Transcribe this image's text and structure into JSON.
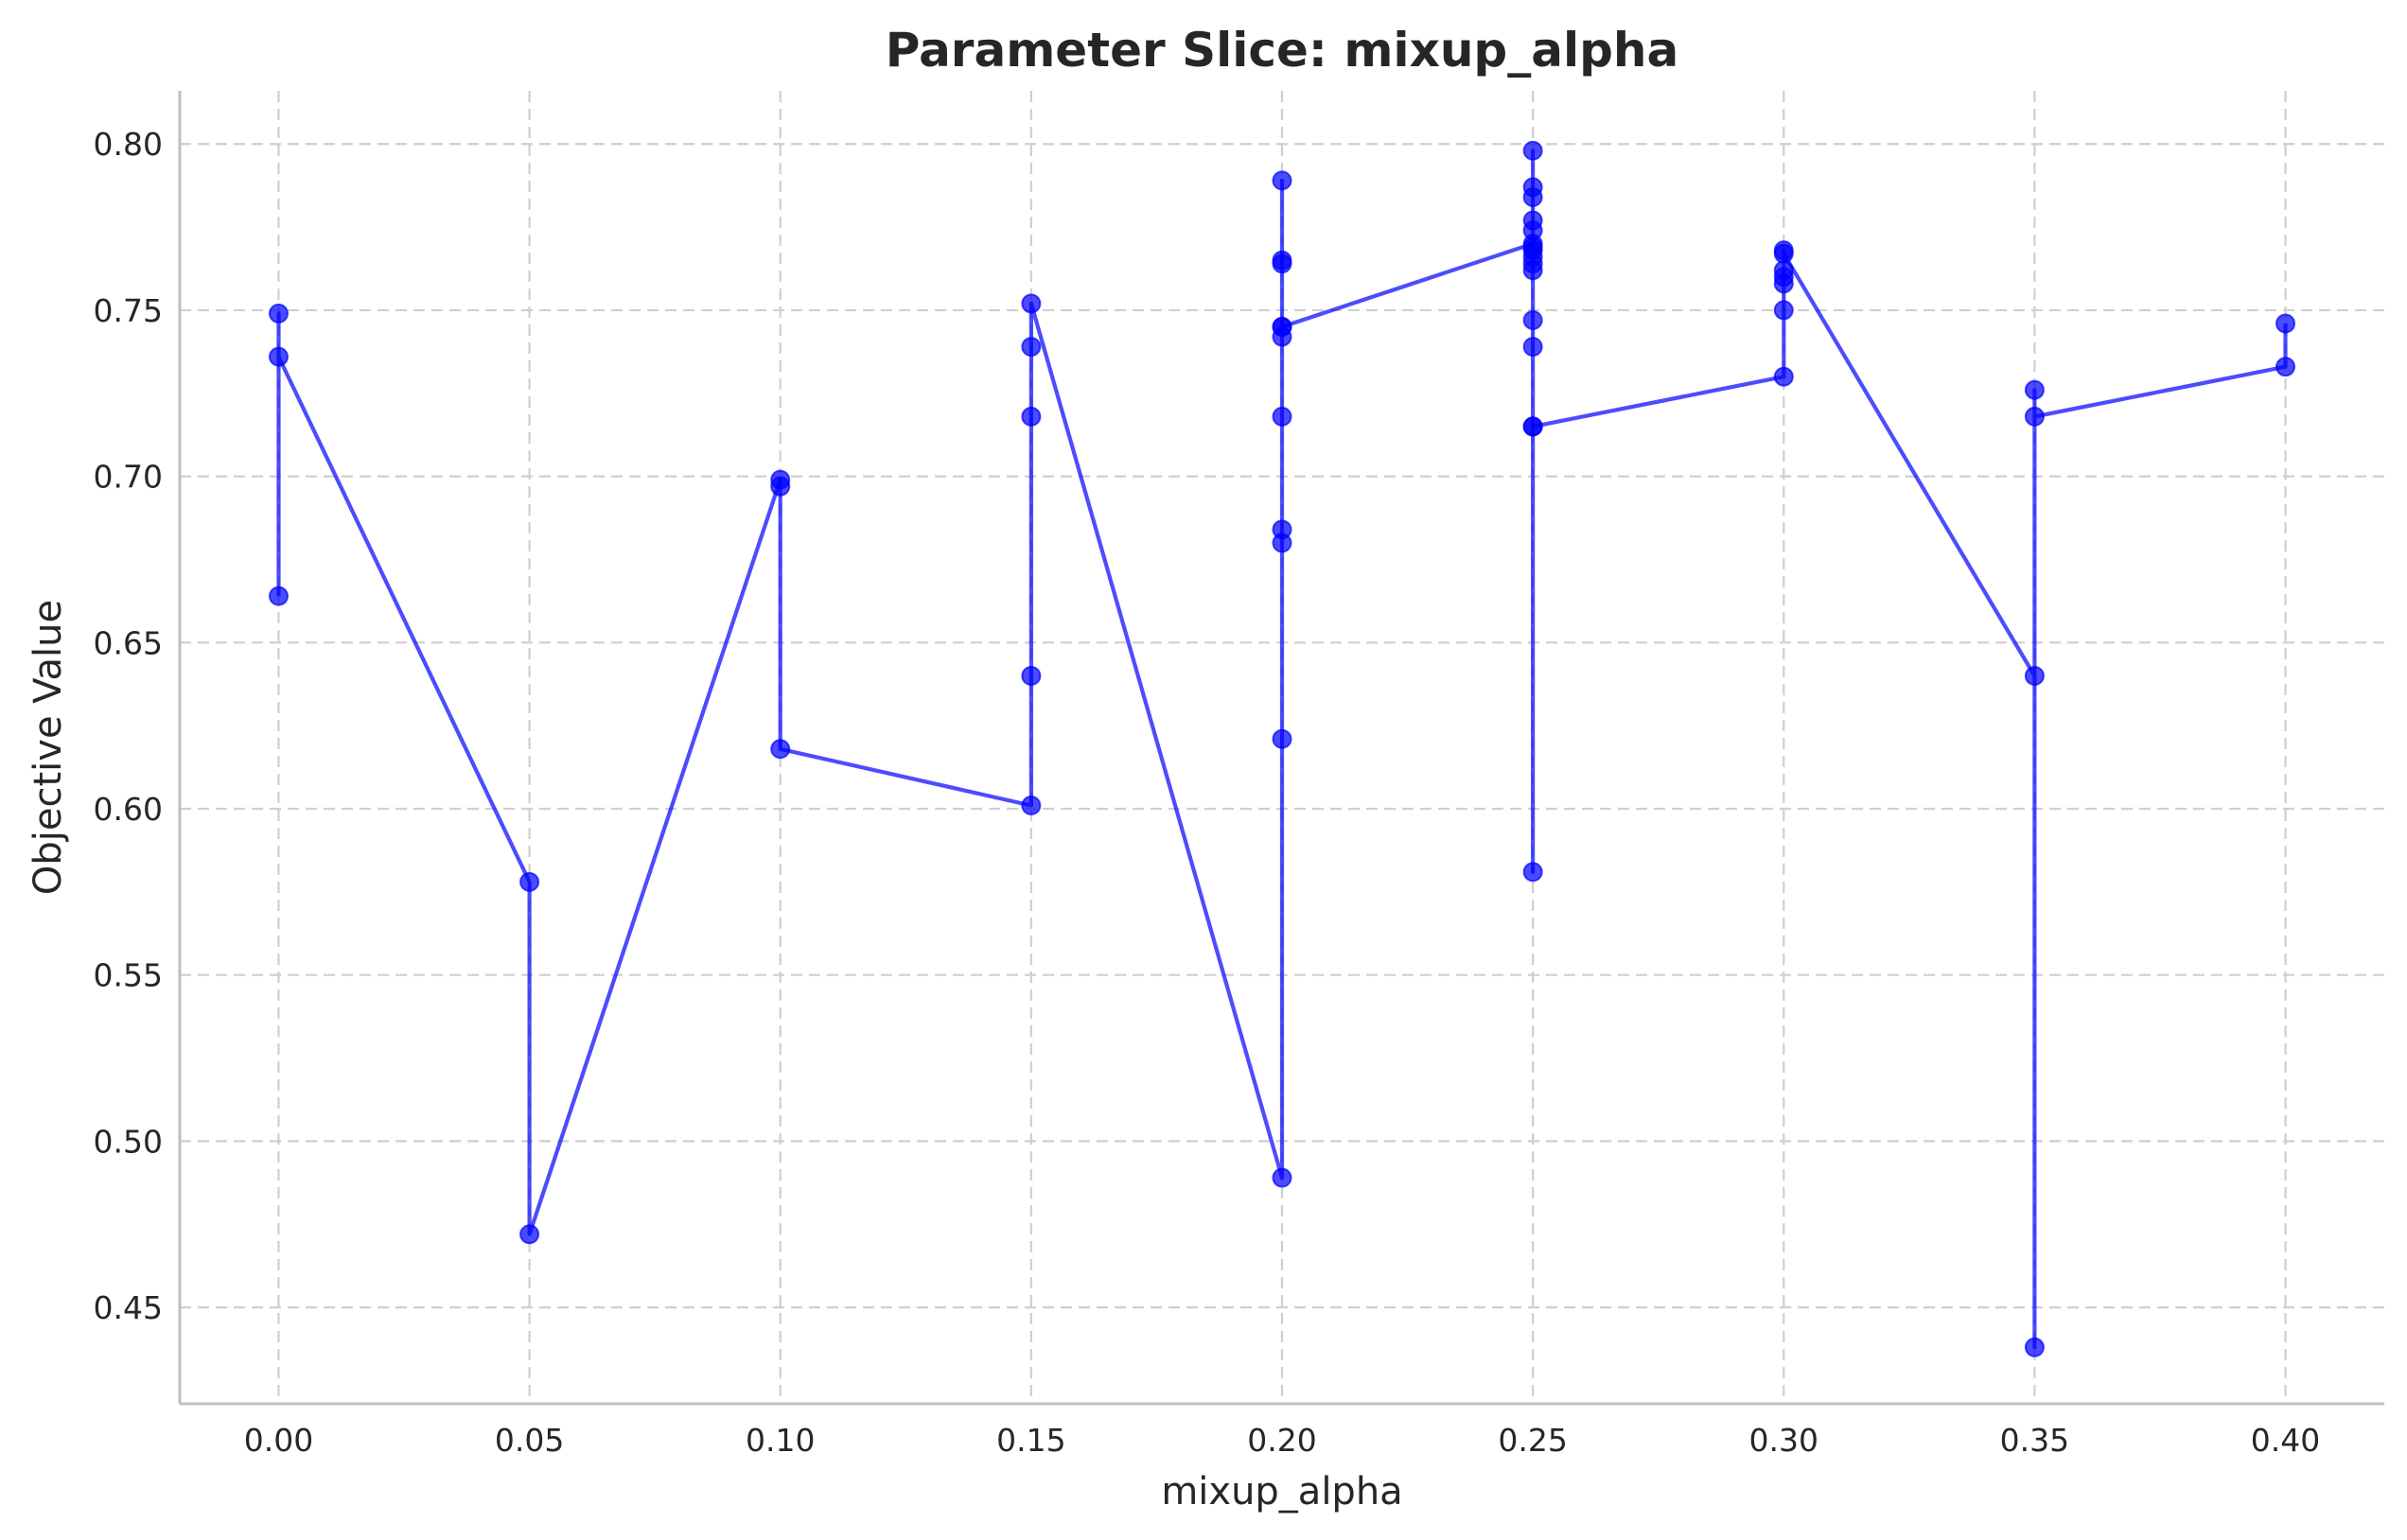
{
  "chart_data": {
    "type": "line",
    "title": "Parameter Slice: mixup_alpha",
    "xlabel": "mixup_alpha",
    "ylabel": "Objective Value",
    "xlim": [
      -0.0197,
      0.4197
    ],
    "ylim": [
      0.421,
      0.816
    ],
    "xticks": [
      0.0,
      0.05,
      0.1,
      0.15,
      0.2,
      0.25,
      0.3,
      0.35,
      0.4
    ],
    "xtick_labels": [
      "0.00",
      "0.05",
      "0.10",
      "0.15",
      "0.20",
      "0.25",
      "0.30",
      "0.35",
      "0.40"
    ],
    "yticks": [
      0.45,
      0.5,
      0.55,
      0.6,
      0.65,
      0.7,
      0.75,
      0.8
    ],
    "ytick_labels": [
      "0.45",
      "0.50",
      "0.55",
      "0.60",
      "0.65",
      "0.70",
      "0.75",
      "0.80"
    ],
    "grid": true,
    "color": "#0000ff",
    "marker": "circle",
    "series": [
      {
        "x": [
          0.0,
          0.0,
          0.0,
          0.05,
          0.05,
          0.1,
          0.1,
          0.1,
          0.15,
          0.15,
          0.15,
          0.15,
          0.15,
          0.2,
          0.2,
          0.2,
          0.2,
          0.2,
          0.2,
          0.2,
          0.2,
          0.2,
          0.2,
          0.2,
          0.25,
          0.25,
          0.25,
          0.25,
          0.25,
          0.25,
          0.25,
          0.25,
          0.25,
          0.25,
          0.25,
          0.25,
          0.25,
          0.25,
          0.25,
          0.25,
          0.3,
          0.3,
          0.3,
          0.3,
          0.3,
          0.3,
          0.3,
          0.35,
          0.35,
          0.35,
          0.35,
          0.4,
          0.4
        ],
        "y": [
          0.664,
          0.749,
          0.736,
          0.578,
          0.472,
          0.699,
          0.697,
          0.618,
          0.601,
          0.64,
          0.718,
          0.739,
          0.752,
          0.489,
          0.621,
          0.68,
          0.684,
          0.718,
          0.789,
          0.765,
          0.764,
          0.745,
          0.742,
          0.745,
          0.77,
          0.798,
          0.787,
          0.784,
          0.777,
          0.774,
          0.768,
          0.766,
          0.764,
          0.762,
          0.747,
          0.739,
          0.769,
          0.581,
          0.715,
          0.715,
          0.73,
          0.75,
          0.758,
          0.76,
          0.762,
          0.768,
          0.767,
          0.64,
          0.438,
          0.726,
          0.718,
          0.733,
          0.746
        ]
      }
    ]
  }
}
